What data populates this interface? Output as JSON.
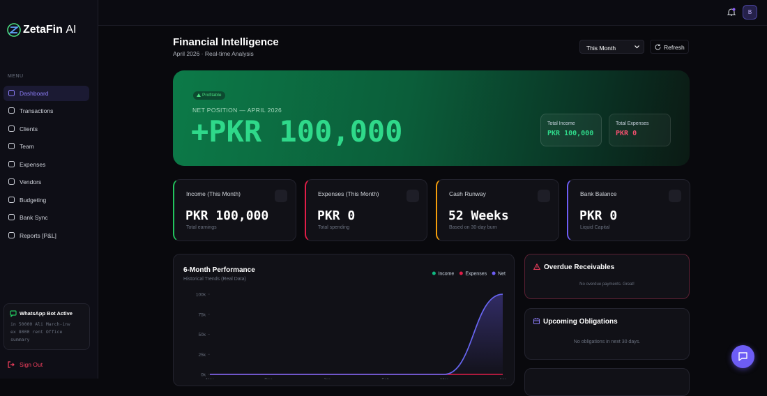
{
  "sidebar": {
    "brand": "ZetaFin",
    "brand_suffix": "AI",
    "menu_label": "MENU",
    "nav": [
      "Dashboard",
      "Transactions",
      "Clients",
      "Team",
      "Expenses",
      "Vendors",
      "Budgeting",
      "Bank Sync",
      "Reports [P&L]"
    ],
    "whatsapp": {
      "title": "WhatsApp Bot Active",
      "lines": [
        "in 50000 Ali March-inv",
        "ex 8000 rent Office",
        "summary"
      ]
    },
    "sign_out": "Sign Out"
  },
  "topbar": {
    "avatar": "B"
  },
  "header": {
    "title": "Financial Intelligence",
    "subtitle": "April 2026 · Real-time Analysis",
    "period": "This Month",
    "refresh": "Refresh"
  },
  "hero": {
    "badge": "Profitable",
    "label": "NET POSITION — APRIL 2026",
    "value": "+PKR 100,000",
    "income_label": "Total Income",
    "income": "PKR 100,000",
    "expenses_label": "Total Expenses",
    "expenses": "PKR 0"
  },
  "cards": [
    {
      "title": "Income (This Month)",
      "value": "PKR 100,000",
      "sub": "Total earnings",
      "color": "#22c55e"
    },
    {
      "title": "Expenses (This Month)",
      "value": "PKR 0",
      "sub": "Total spending",
      "color": "#e11d48"
    },
    {
      "title": "Cash Runway",
      "value": "52 Weeks",
      "sub": "Based on 30-day burn",
      "color": "#f59e0b"
    },
    {
      "title": "Bank Balance",
      "value": "PKR 0",
      "sub": "Liquid Capital",
      "color": "#6d5df5"
    }
  ],
  "chart_data": {
    "type": "line",
    "title": "6-Month Performance",
    "subtitle": "Historical Trends (Real Data)",
    "categories": [
      "Nov",
      "Dec",
      "Jan",
      "Feb",
      "Mar",
      "Apr"
    ],
    "series": [
      {
        "name": "Income",
        "color": "#10b981",
        "values": [
          0,
          0,
          0,
          0,
          0,
          100000
        ]
      },
      {
        "name": "Expenses",
        "color": "#e11d48",
        "values": [
          0,
          0,
          0,
          0,
          0,
          0
        ]
      },
      {
        "name": "Net",
        "color": "#6d5df5",
        "values": [
          0,
          0,
          0,
          0,
          0,
          100000
        ]
      }
    ],
    "ylim": [
      0,
      100000
    ],
    "yticks": [
      {
        "value": 0,
        "label": "0k"
      },
      {
        "value": 25000,
        "label": "25k"
      },
      {
        "value": 50000,
        "label": "50k"
      },
      {
        "value": 75000,
        "label": "75k"
      },
      {
        "value": 100000,
        "label": "100k"
      }
    ],
    "grid": false,
    "legend": "top-right"
  },
  "panels": {
    "overdue": {
      "title": "Overdue Receivables",
      "empty": "No overdue payments. Great!"
    },
    "upcoming": {
      "title": "Upcoming Obligations",
      "empty": "No obligations in next 30 days."
    }
  }
}
